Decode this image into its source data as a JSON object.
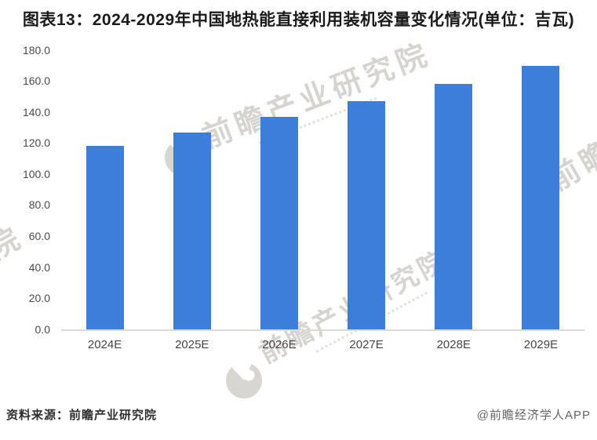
{
  "page": {
    "title": "图表13：2024-2029年中国地热能直接利用装机容量变化情况(单位：吉瓦)",
    "footer": {
      "source": "资料来源：前瞻产业研究院",
      "credit": "@前瞻经济学人APP"
    },
    "watermark_text": "前瞻产业研究院"
  },
  "chart_data": {
    "type": "bar",
    "title": "2024-2029年中国地热能直接利用装机容量变化情况",
    "unit": "吉瓦",
    "categories": [
      "2024E",
      "2025E",
      "2026E",
      "2027E",
      "2028E",
      "2029E"
    ],
    "values": [
      118,
      127,
      137,
      147,
      158,
      170
    ],
    "xlabel": "",
    "ylabel": "",
    "ylim": [
      0,
      180
    ],
    "ytick_step": 20,
    "yticks": [
      "0.0",
      "20.0",
      "40.0",
      "60.0",
      "80.0",
      "100.0",
      "120.0",
      "140.0",
      "160.0",
      "180.0"
    ],
    "bar_color": "#3d7edb",
    "axis_line_color": "#dadada",
    "grid": false,
    "legend": false
  }
}
